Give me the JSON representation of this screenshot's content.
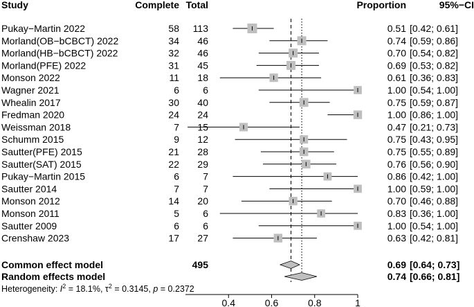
{
  "chart_data": {
    "type": "forest",
    "headers": {
      "study": "Study",
      "complete": "Complete",
      "total": "Total",
      "proportion": "Proportion",
      "ci": "95%−CI"
    },
    "studies": [
      {
        "study": "Pukay−Martin 2022",
        "complete": 58,
        "total": 113,
        "proportion": 0.51,
        "lower": 0.42,
        "upper": 0.61,
        "prop_label": "0.51",
        "ci_label": "[0.42; 0.61]"
      },
      {
        "study": "Morland(OB−bCBCT) 2022",
        "complete": 34,
        "total": 46,
        "proportion": 0.74,
        "lower": 0.59,
        "upper": 0.86,
        "prop_label": "0.74",
        "ci_label": "[0.59; 0.86]"
      },
      {
        "study": "Morland(HB−bCBCT) 2022",
        "complete": 32,
        "total": 46,
        "proportion": 0.7,
        "lower": 0.54,
        "upper": 0.82,
        "prop_label": "0.70",
        "ci_label": "[0.54; 0.82]"
      },
      {
        "study": "Morland(PFE) 2022",
        "complete": 31,
        "total": 45,
        "proportion": 0.69,
        "lower": 0.53,
        "upper": 0.82,
        "prop_label": "0.69",
        "ci_label": "[0.53; 0.82]"
      },
      {
        "study": "Monson 2022",
        "complete": 11,
        "total": 18,
        "proportion": 0.61,
        "lower": 0.36,
        "upper": 0.83,
        "prop_label": "0.61",
        "ci_label": "[0.36; 0.83]"
      },
      {
        "study": "Wagner 2021",
        "complete": 6,
        "total": 6,
        "proportion": 1.0,
        "lower": 0.54,
        "upper": 1.0,
        "prop_label": "1.00",
        "ci_label": "[0.54; 1.00]"
      },
      {
        "study": "Whealin 2017",
        "complete": 30,
        "total": 40,
        "proportion": 0.75,
        "lower": 0.59,
        "upper": 0.87,
        "prop_label": "0.75",
        "ci_label": "[0.59; 0.87]"
      },
      {
        "study": "Fredman 2020",
        "complete": 24,
        "total": 24,
        "proportion": 1.0,
        "lower": 0.86,
        "upper": 1.0,
        "prop_label": "1.00",
        "ci_label": "[0.86; 1.00]"
      },
      {
        "study": "Weissman 2018",
        "complete": 7,
        "total": 15,
        "proportion": 0.47,
        "lower": 0.21,
        "upper": 0.73,
        "prop_label": "0.47",
        "ci_label": "[0.21; 0.73]"
      },
      {
        "study": "Schumm 2015",
        "complete": 9,
        "total": 12,
        "proportion": 0.75,
        "lower": 0.43,
        "upper": 0.95,
        "prop_label": "0.75",
        "ci_label": "[0.43; 0.95]"
      },
      {
        "study": "Sautter(PFE) 2015",
        "complete": 21,
        "total": 28,
        "proportion": 0.75,
        "lower": 0.55,
        "upper": 0.89,
        "prop_label": "0.75",
        "ci_label": "[0.55; 0.89]"
      },
      {
        "study": "Sautter(SAT) 2015",
        "complete": 22,
        "total": 29,
        "proportion": 0.76,
        "lower": 0.56,
        "upper": 0.9,
        "prop_label": "0.76",
        "ci_label": "[0.56; 0.90]"
      },
      {
        "study": "Pukay−Martin 2015",
        "complete": 6,
        "total": 7,
        "proportion": 0.86,
        "lower": 0.42,
        "upper": 1.0,
        "prop_label": "0.86",
        "ci_label": "[0.42; 1.00]"
      },
      {
        "study": "Sautter 2014",
        "complete": 7,
        "total": 7,
        "proportion": 1.0,
        "lower": 0.59,
        "upper": 1.0,
        "prop_label": "1.00",
        "ci_label": "[0.59; 1.00]"
      },
      {
        "study": "Monson 2012",
        "complete": 14,
        "total": 20,
        "proportion": 0.7,
        "lower": 0.46,
        "upper": 0.88,
        "prop_label": "0.70",
        "ci_label": "[0.46; 0.88]"
      },
      {
        "study": "Monson 2011",
        "complete": 5,
        "total": 6,
        "proportion": 0.83,
        "lower": 0.36,
        "upper": 1.0,
        "prop_label": "0.83",
        "ci_label": "[0.36; 1.00]"
      },
      {
        "study": "Sautter 2009",
        "complete": 6,
        "total": 6,
        "proportion": 1.0,
        "lower": 0.54,
        "upper": 1.0,
        "prop_label": "1.00",
        "ci_label": "[0.54; 1.00]"
      },
      {
        "study": "Crenshaw 2023",
        "complete": 17,
        "total": 27,
        "proportion": 0.63,
        "lower": 0.42,
        "upper": 0.81,
        "prop_label": "0.63",
        "ci_label": "[0.42; 0.81]"
      }
    ],
    "common": {
      "label": "Common effect model",
      "total": 495,
      "estimate": 0.69,
      "lower": 0.64,
      "upper": 0.73,
      "prop_label": "0.69",
      "ci_label": "[0.64; 0.73]"
    },
    "random": {
      "label": "Random effects model",
      "estimate": 0.74,
      "lower": 0.66,
      "upper": 0.81,
      "prop_label": "0.74",
      "ci_label": "[0.66; 0.81]"
    },
    "heterogeneity": {
      "prefix": "Heterogeneity: ",
      "i2": "18.1%",
      "tau2": "0.3145",
      "p": "0.2372"
    },
    "xlim": [
      0.2,
      1.0
    ],
    "xticks": [
      0.4,
      0.6,
      0.8,
      1.0
    ],
    "xtick_labels": [
      "0.4",
      "0.6",
      "0.8",
      "1"
    ],
    "colors": {
      "square": "#bfbfbf",
      "diamond": "#bfbfbf",
      "line": "#000000"
    }
  }
}
